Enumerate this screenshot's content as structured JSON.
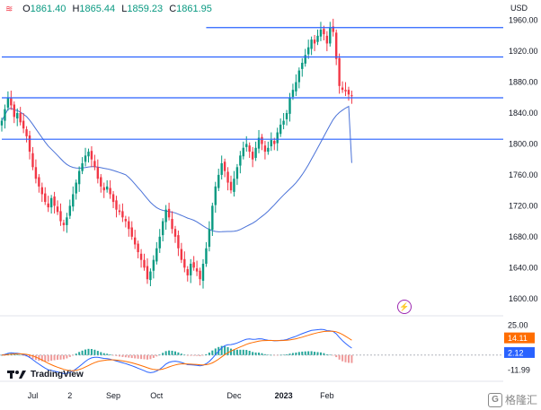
{
  "ohlc": {
    "menu_icon": "tv-menu-icon",
    "o_label": "O",
    "o": "1861.40",
    "h_label": "H",
    "h": "1865.44",
    "l_label": "L",
    "l": "1859.23",
    "c_label": "C",
    "c": "1861.95"
  },
  "currency": "USD",
  "branding": {
    "logo": "TradingView",
    "watermark": "格隆汇",
    "watermark_mark": "G"
  },
  "colors": {
    "up": "#089981",
    "down": "#f23645",
    "level": "#2962ff",
    "ma": "#4a72d8",
    "macd": "#2962ff",
    "signal": "#ff6d00",
    "last": "#089981"
  },
  "chart_data": [
    {
      "type": "candlestick",
      "ylim": [
        1580,
        1970
      ],
      "y_ticks": [
        1600,
        1640,
        1680,
        1720,
        1760,
        1800,
        1840,
        1880,
        1920,
        1960
      ],
      "x_ticks": [
        "Jul",
        "2",
        "Sep",
        "Oct",
        "Dec",
        "2023",
        "Feb"
      ],
      "x_tick_index": [
        10,
        22,
        36,
        50,
        75,
        91,
        105
      ],
      "n_bars": 130,
      "levels": [
        {
          "price": 1950.58,
          "label": "1950.58",
          "start_index": 66
        },
        {
          "price": 1912.52,
          "label": "1912.52",
          "start_index": 0
        },
        {
          "price": 1859.75,
          "label": "1859.75",
          "start_index": 0
        },
        {
          "price": 1806.12,
          "label": "1806.12",
          "start_index": 0
        }
      ],
      "last_price": {
        "price": 1861.95,
        "label": "1861.95"
      },
      "moving_average": {
        "label": "1775.41",
        "last": 1775.41
      },
      "closes": [
        1830,
        1845,
        1860,
        1850,
        1835,
        1840,
        1828,
        1820,
        1810,
        1790,
        1770,
        1755,
        1745,
        1735,
        1725,
        1718,
        1730,
        1720,
        1712,
        1700,
        1695,
        1705,
        1720,
        1735,
        1750,
        1765,
        1775,
        1785,
        1790,
        1780,
        1770,
        1755,
        1745,
        1740,
        1745,
        1735,
        1725,
        1715,
        1712,
        1705,
        1700,
        1690,
        1680,
        1670,
        1660,
        1650,
        1640,
        1625,
        1635,
        1650,
        1665,
        1680,
        1700,
        1715,
        1705,
        1690,
        1680,
        1665,
        1650,
        1640,
        1630,
        1645,
        1640,
        1635,
        1625,
        1645,
        1665,
        1690,
        1720,
        1745,
        1760,
        1775,
        1765,
        1750,
        1740,
        1755,
        1770,
        1785,
        1795,
        1800,
        1790,
        1780,
        1795,
        1808,
        1800,
        1790,
        1795,
        1805,
        1800,
        1815,
        1825,
        1830,
        1840,
        1860,
        1870,
        1880,
        1895,
        1905,
        1915,
        1925,
        1935,
        1930,
        1940,
        1948,
        1942,
        1930,
        1950,
        1945,
        1910,
        1875,
        1870,
        1868,
        1864,
        1861.95
      ]
    },
    {
      "type": "macd",
      "ylim": [
        -20,
        30
      ],
      "y_labels": [
        {
          "value": 25,
          "label": "25.00"
        },
        {
          "value": 14.11,
          "label": "14.11"
        },
        {
          "value": 2.12,
          "label": "2.12"
        },
        {
          "value": -11.99,
          "label": "-11.99"
        }
      ]
    }
  ]
}
